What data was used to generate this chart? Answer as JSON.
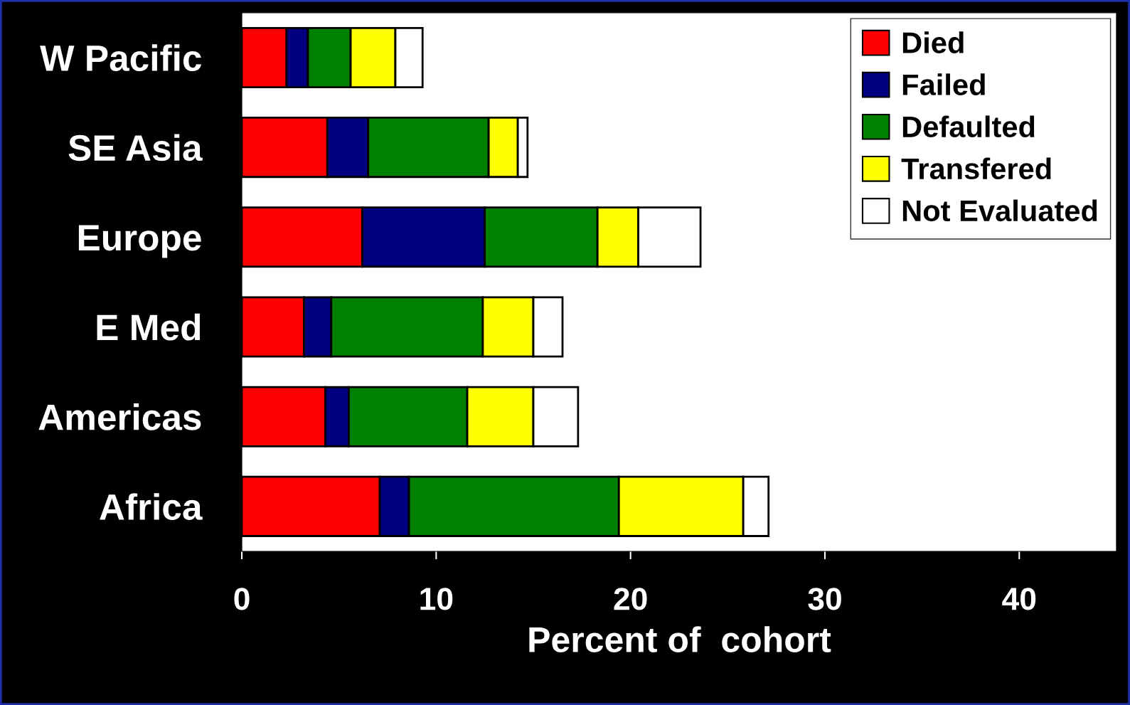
{
  "chart_data": {
    "type": "bar",
    "orientation": "horizontal",
    "stacked": true,
    "xlabel": "Percent of  cohort",
    "categories": [
      "W Pacific",
      "SE Asia",
      "Europe",
      "E Med",
      "Americas",
      "Africa"
    ],
    "series": [
      {
        "name": "Died",
        "color": "#ff0000",
        "values": [
          2.3,
          4.4,
          6.2,
          3.2,
          4.3,
          7.1
        ]
      },
      {
        "name": "Failed",
        "color": "#000080",
        "values": [
          1.1,
          2.1,
          6.3,
          1.4,
          1.2,
          1.5
        ]
      },
      {
        "name": "Defaulted",
        "color": "#008000",
        "values": [
          2.2,
          6.2,
          5.8,
          7.8,
          6.1,
          10.8
        ]
      },
      {
        "name": "Transfered",
        "color": "#ffff00",
        "values": [
          2.3,
          1.5,
          2.1,
          2.6,
          3.4,
          6.4
        ]
      },
      {
        "name": "Not Evaluated",
        "color": "#ffffff",
        "values": [
          1.4,
          0.5,
          3.2,
          1.5,
          2.3,
          1.3
        ]
      }
    ],
    "xlim": [
      0,
      45
    ],
    "xticks": [
      0,
      10,
      20,
      30,
      40
    ],
    "legend": "top right"
  }
}
